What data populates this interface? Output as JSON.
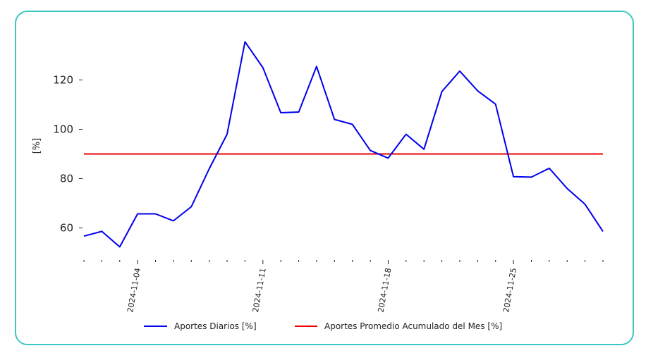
{
  "chart_data": {
    "type": "line",
    "ylabel": "[%]",
    "ylim": [
      47,
      141
    ],
    "yticks": [
      60,
      80,
      100,
      120
    ],
    "x": [
      "2024-11-01",
      "2024-11-02",
      "2024-11-03",
      "2024-11-04",
      "2024-11-05",
      "2024-11-06",
      "2024-11-07",
      "2024-11-08",
      "2024-11-09",
      "2024-11-10",
      "2024-11-11",
      "2024-11-12",
      "2024-11-13",
      "2024-11-14",
      "2024-11-15",
      "2024-11-16",
      "2024-11-17",
      "2024-11-18",
      "2024-11-19",
      "2024-11-20",
      "2024-11-21",
      "2024-11-22",
      "2024-11-23",
      "2024-11-24",
      "2024-11-25",
      "2024-11-26",
      "2024-11-27",
      "2024-11-28",
      "2024-11-29",
      "2024-11-30"
    ],
    "xtick_labels": [
      "2024-11-04",
      "2024-11-11",
      "2024-11-18",
      "2024-11-25"
    ],
    "series": [
      {
        "name": "Aportes Diarios [%]",
        "color": "#0000ee",
        "values": [
          56.7,
          58.6,
          52.3,
          65.7,
          65.7,
          62.9,
          68.6,
          84.0,
          98.0,
          135.5,
          125.0,
          106.7,
          107.0,
          125.5,
          104.0,
          102.0,
          91.4,
          88.3,
          98.0,
          91.9,
          115.3,
          123.6,
          115.6,
          110.2,
          80.8,
          80.6,
          84.2,
          76.0,
          69.6,
          58.6
        ]
      },
      {
        "name": "Aportes Promedio Acumulado del Mes [%]",
        "color": "#ee0000",
        "values": [
          90,
          90,
          90,
          90,
          90,
          90,
          90,
          90,
          90,
          90,
          90,
          90,
          90,
          90,
          90,
          90,
          90,
          90,
          90,
          90,
          90,
          90,
          90,
          90,
          90,
          90,
          90,
          90,
          90,
          90
        ]
      }
    ],
    "legend_position": "bottom-center",
    "grid": false
  }
}
